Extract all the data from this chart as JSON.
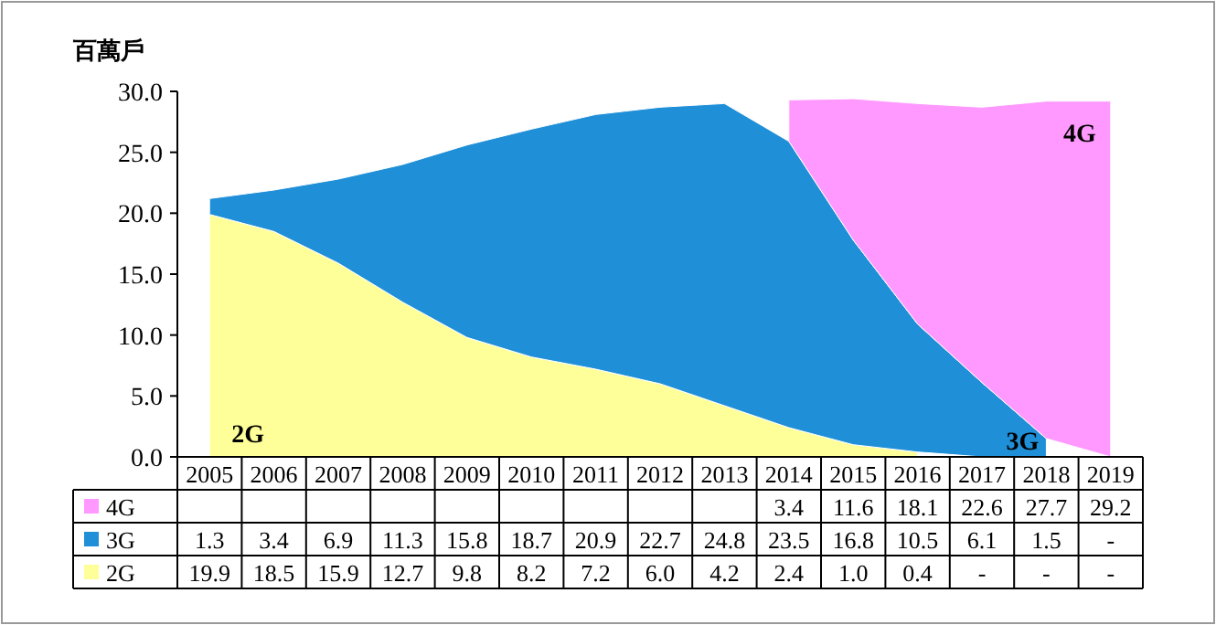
{
  "chart_data": {
    "type": "area",
    "stacked": true,
    "ylabel": "百萬戶",
    "categories": [
      "2005",
      "2006",
      "2007",
      "2008",
      "2009",
      "2010",
      "2011",
      "2012",
      "2013",
      "2014",
      "2015",
      "2016",
      "2017",
      "2018",
      "2019"
    ],
    "ylim": [
      0,
      30
    ],
    "yticks": [
      {
        "value": 0,
        "label": "0.0"
      },
      {
        "value": 5,
        "label": "5.0"
      },
      {
        "value": 10,
        "label": "10.0"
      },
      {
        "value": 15,
        "label": "15.0"
      },
      {
        "value": 20,
        "label": "20.0"
      },
      {
        "value": 25,
        "label": "25.0"
      },
      {
        "value": 30,
        "label": "30.0"
      }
    ],
    "legend": "bottom",
    "grid": false,
    "series": [
      {
        "name": "2G",
        "color": "#ffff99",
        "values": [
          19.9,
          18.5,
          15.9,
          12.7,
          9.8,
          8.2,
          7.2,
          6.0,
          4.2,
          2.4,
          1.0,
          0.4,
          null,
          null,
          null
        ],
        "value_labels": [
          "19.9",
          "18.5",
          "15.9",
          "12.7",
          "9.8",
          "8.2",
          "7.2",
          "6.0",
          "4.2",
          "2.4",
          "1.0",
          "0.4",
          "-",
          "-",
          "-"
        ]
      },
      {
        "name": "3G",
        "color": "#1f8fd8",
        "values": [
          1.3,
          3.4,
          6.9,
          11.3,
          15.8,
          18.7,
          20.9,
          22.7,
          24.8,
          23.5,
          16.8,
          10.5,
          6.1,
          1.5,
          null
        ],
        "value_labels": [
          "1.3",
          "3.4",
          "6.9",
          "11.3",
          "15.8",
          "18.7",
          "20.9",
          "22.7",
          "24.8",
          "23.5",
          "16.8",
          "10.5",
          "6.1",
          "1.5",
          "-"
        ]
      },
      {
        "name": "4G",
        "color": "#ff99ff",
        "values": [
          null,
          null,
          null,
          null,
          null,
          null,
          null,
          null,
          null,
          3.4,
          11.6,
          18.1,
          22.6,
          27.7,
          29.2
        ],
        "value_labels": [
          null,
          null,
          null,
          null,
          null,
          null,
          null,
          null,
          null,
          "3.4",
          "11.6",
          "18.1",
          "22.6",
          "27.7",
          "29.2"
        ]
      }
    ]
  }
}
